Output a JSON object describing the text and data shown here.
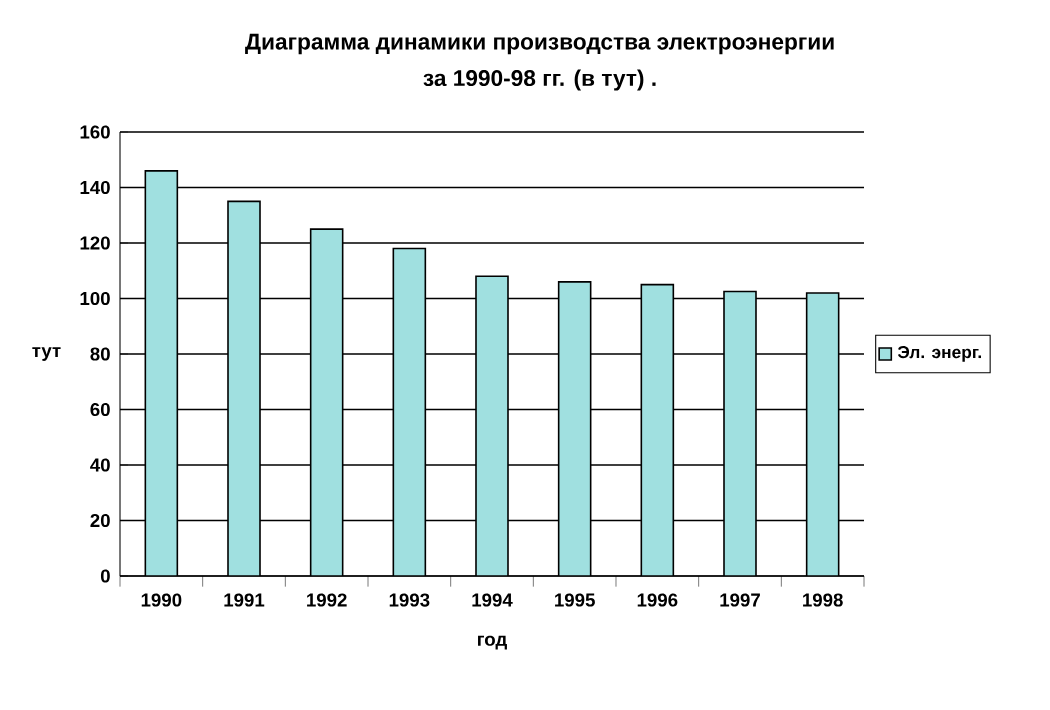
{
  "chart_data": {
    "type": "bar",
    "title": "Диаграмма динамики производства электроэнергии",
    "subtitle": "за 1990-98 гг. (в тут) .",
    "xlabel": "год",
    "ylabel": "тут",
    "categories": [
      "1990",
      "1991",
      "1992",
      "1993",
      "1994",
      "1995",
      "1996",
      "1997",
      "1998"
    ],
    "series": [
      {
        "name": "Эл. энерг.",
        "color": "#a0e0e0",
        "values": [
          146,
          135,
          125,
          118,
          108,
          106,
          105,
          102.5,
          102
        ]
      }
    ],
    "ylim": [
      0,
      160
    ],
    "yticks": [
      0,
      20,
      40,
      60,
      80,
      100,
      120,
      140,
      160
    ],
    "grid": "y",
    "legend": "right"
  }
}
